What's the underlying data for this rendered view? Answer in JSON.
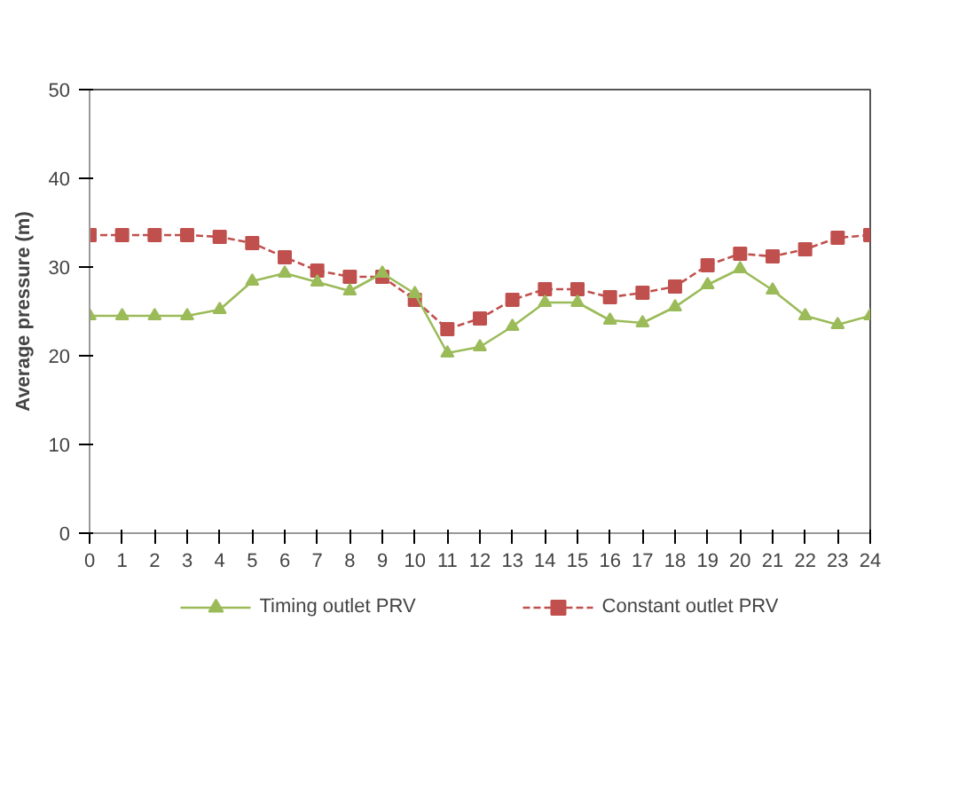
{
  "chart_data": {
    "type": "line",
    "ylabel": "Average pressure (m)",
    "x": [
      0,
      1,
      2,
      3,
      4,
      5,
      6,
      7,
      8,
      9,
      10,
      11,
      12,
      13,
      14,
      15,
      16,
      17,
      18,
      19,
      20,
      21,
      22,
      23,
      24
    ],
    "series": [
      {
        "name": "Timing outlet PRV",
        "color": "#9bbb59",
        "marker": "triangle",
        "line_style": "solid",
        "values": [
          24.5,
          24.5,
          24.5,
          24.5,
          25.2,
          28.4,
          29.3,
          28.3,
          27.3,
          29.3,
          27,
          20.3,
          21,
          23.3,
          26,
          26,
          24,
          23.7,
          25.5,
          28,
          29.8,
          27.4,
          24.5,
          23.5,
          24.5
        ]
      },
      {
        "name": "Constant outlet PRV",
        "color": "#c0504d",
        "marker": "square",
        "line_style": "dashed",
        "values": [
          33.6,
          33.6,
          33.6,
          33.6,
          33.4,
          32.7,
          31.1,
          29.6,
          28.9,
          28.9,
          26.3,
          23,
          24.2,
          26.3,
          27.5,
          27.5,
          26.6,
          27.1,
          27.8,
          30.2,
          31.5,
          31.2,
          32,
          33.3,
          33.6
        ]
      }
    ],
    "xlim": [
      0,
      24
    ],
    "xticks": [
      0,
      1,
      2,
      3,
      4,
      5,
      6,
      7,
      8,
      9,
      10,
      11,
      12,
      13,
      14,
      15,
      16,
      17,
      18,
      19,
      20,
      21,
      22,
      23,
      24
    ],
    "ylim": [
      0,
      50
    ],
    "yticks": [
      0,
      10,
      20,
      30,
      40,
      50
    ],
    "grid": false,
    "legend": "bottom"
  }
}
